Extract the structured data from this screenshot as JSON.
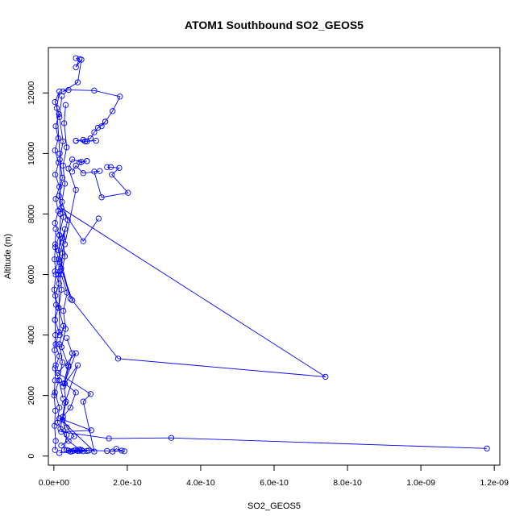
{
  "chart_data": {
    "type": "line",
    "title": "ATOM1 Southbound SO2_GEOS5",
    "xlabel": "SO2_GEOS5",
    "ylabel": "Altitude (m)",
    "xlim": [
      -1.5e-11,
      1.215e-09
    ],
    "ylim": [
      -300,
      13500
    ],
    "xticks": [
      0,
      2e-10,
      4e-10,
      6e-10,
      8e-10,
      1e-09,
      1.2e-09
    ],
    "xtick_labels": [
      "0.0e+00",
      "2.0e-10",
      "4.0e-10",
      "6.0e-10",
      "8.0e-10",
      "1.0e-09",
      "1.2e-09"
    ],
    "yticks": [
      0,
      2000,
      4000,
      6000,
      8000,
      10000,
      12000
    ],
    "ytick_labels": [
      "0",
      "2000",
      "4000",
      "6000",
      "8000",
      "10000",
      "12000"
    ],
    "grid": false,
    "marker": "open-circle",
    "color": "#0000ff",
    "series": [
      {
        "x": [
          6e-11,
          7e-11,
          6e-11,
          7.5e-11,
          6.5e-11,
          2.5e-11,
          4e-11,
          1.1e-10,
          1.8e-10,
          1.6e-10,
          1.4e-10,
          1.3e-10,
          1.4e-10,
          1.2e-10,
          1.1e-10,
          1e-10,
          8e-11,
          6e-11,
          9e-11,
          1.15e-10,
          8.5e-11,
          6e-11
        ],
        "y": [
          13150,
          13120,
          12850,
          13100,
          12350,
          12050,
          12100,
          12080,
          11880,
          11400,
          11050,
          10900,
          11050,
          10850,
          10700,
          10500,
          10450,
          10420,
          10400,
          10420,
          10400,
          10420
        ]
      },
      {
        "x": [
          1.45e-10,
          1.55e-10,
          1.78e-10,
          1.58e-10,
          2.02e-10,
          1.3e-10,
          1.1e-10,
          1.25e-10,
          8e-11,
          6e-11,
          5e-11
        ],
        "y": [
          9550,
          9550,
          9520,
          9300,
          8700,
          8550,
          9400,
          9420,
          9350,
          9600,
          9400
        ]
      },
      {
        "x": [
          1.22e-10,
          8e-11,
          2e-11,
          7.4e-10,
          1.75e-10,
          5e-11,
          2e-11,
          3e-11,
          1.2e-11,
          4.5e-11,
          1.6e-11
        ],
        "y": [
          7850,
          7100,
          8200,
          2620,
          3220,
          5150,
          6200,
          7500,
          6800,
          5200,
          6400
        ]
      },
      {
        "x": [
          1.18e-09,
          3.2e-10,
          1.5e-10,
          2e-11,
          1.02e-10,
          1.5e-11,
          1.1e-10,
          8e-11,
          1e-10,
          1e-11,
          6e-11,
          2.5e-11,
          6.5e-11,
          3e-11,
          1.8e-11
        ],
        "y": [
          250,
          600,
          580,
          800,
          850,
          1250,
          150,
          1800,
          2050,
          2750,
          3400,
          2300,
          3000,
          1750,
          900
        ]
      },
      {
        "x": [
          1.6e-10,
          1.7e-10,
          1.85e-10,
          1.92e-10,
          1.45e-10,
          6e-11,
          1.5e-11
        ],
        "y": [
          150,
          240,
          180,
          160,
          170,
          200,
          100
        ]
      },
      {
        "x": [
          7e-11,
          4e-11,
          1e-11,
          1.5e-11,
          3e-12,
          1.4e-11,
          3e-12,
          1.5e-11,
          5e-12,
          1.4e-11,
          3e-12,
          1.2e-11,
          4e-12,
          1.4e-11,
          3e-12,
          1.3e-11,
          4e-12,
          1.5e-11,
          3e-12,
          1.2e-11,
          5e-12,
          1.5e-11,
          4e-12,
          1.3e-11,
          3e-12,
          1.2e-11,
          5e-12,
          1.4e-11,
          3e-12,
          1.5e-11,
          8e-12,
          1.6e-11,
          1.8e-11,
          1.3e-11,
          1.6e-11
        ],
        "y": [
          220,
          500,
          1100,
          1600,
          2100,
          2500,
          2900,
          3300,
          3700,
          4100,
          4500,
          4900,
          5300,
          5700,
          6100,
          6500,
          6900,
          7300,
          7700,
          8100,
          8500,
          8900,
          9300,
          9700,
          10100,
          10500,
          10900,
          11300,
          11700,
          12050,
          11500,
          10000,
          8000,
          6000,
          4000
        ]
      },
      {
        "x": [
          3.2e-11,
          2.8e-11,
          3.5e-11,
          2.5e-11,
          3e-11,
          2.2e-11,
          3.8e-11,
          2.4e-11,
          3e-11,
          2e-11,
          3.6e-11,
          2.6e-11,
          3.2e-11,
          2.1e-11,
          3.9e-11,
          2.7e-11,
          3.3e-11,
          2.4e-11,
          3.5e-11,
          2.8e-11
        ],
        "y": [
          11600,
          11000,
          10200,
          9600,
          9000,
          8400,
          7800,
          7200,
          6600,
          6000,
          5400,
          4800,
          4200,
          3600,
          3000,
          2400,
          1800,
          1200,
          700,
          200
        ]
      },
      {
        "x": [
          2.2e-11,
          1.5e-11,
          2.5e-11,
          1.6e-11,
          2.3e-11,
          1.4e-11,
          2.6e-11,
          1.5e-11,
          2.4e-11,
          1.6e-11,
          2.1e-11,
          1.3e-11,
          2.6e-11,
          1.5e-11,
          2.3e-11,
          1.4e-11,
          2.5e-11
        ],
        "y": [
          11900,
          11200,
          10400,
          9800,
          9200,
          8600,
          7900,
          7300,
          6700,
          6100,
          5500,
          4900,
          4300,
          3700,
          3100,
          2500,
          1900
        ]
      },
      {
        "x": [
          9e-11,
          7e-11,
          9e-11,
          7.5e-11,
          5e-11,
          4e-11,
          6e-11,
          3e-11
        ],
        "y": [
          9750,
          9700,
          9750,
          9720,
          9800,
          9500,
          8800,
          7000
        ]
      },
      {
        "x": [
          5e-12,
          4e-12,
          2e-12,
          5e-12,
          1e-12,
          6e-12,
          3e-12,
          4e-12,
          2e-12,
          5e-12,
          3e-12,
          1e-12,
          4e-12,
          2e-12,
          5e-12,
          3e-12
        ],
        "y": [
          7500,
          7000,
          6500,
          6000,
          5500,
          5000,
          4500,
          4000,
          3500,
          3000,
          2500,
          2000,
          1500,
          1000,
          500,
          200
        ]
      },
      {
        "x": [
          8e-11,
          6.5e-11,
          5.5e-11,
          3.5e-11,
          4.5e-11,
          9.5e-11,
          7.5e-11,
          5e-11,
          9e-11,
          7e-11,
          4e-11
        ],
        "y": [
          160,
          170,
          180,
          200,
          150,
          180,
          200,
          160,
          170,
          175,
          180
        ]
      },
      {
        "x": [
          3.5e-11,
          5e-11,
          4e-11,
          3e-11,
          6e-11,
          4.5e-11,
          2.5e-11,
          3.5e-11,
          5.5e-11,
          2e-11
        ],
        "y": [
          3900,
          3400,
          2950,
          2400,
          2100,
          1600,
          1300,
          950,
          650,
          350
        ]
      }
    ]
  }
}
